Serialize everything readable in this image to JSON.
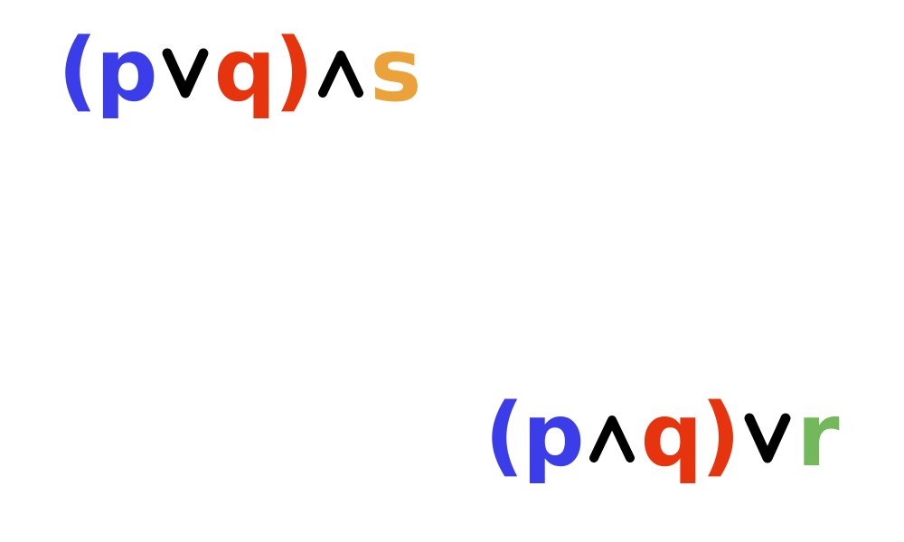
{
  "colors": {
    "p": "#3a3de8",
    "q": "#e6340e",
    "s": "#eba23b",
    "r": "#74b85c",
    "operator": "#000000"
  },
  "expression_1": {
    "open_paren": "(",
    "var1": "p",
    "op1": "∨",
    "var2": "q",
    "close_paren": ")",
    "op2": "∧",
    "var3": "s"
  },
  "expression_2": {
    "open_paren": "(",
    "var1": "p",
    "op1": "∧",
    "var2": "q",
    "close_paren": ")",
    "op2": "∨",
    "var3": "r"
  }
}
